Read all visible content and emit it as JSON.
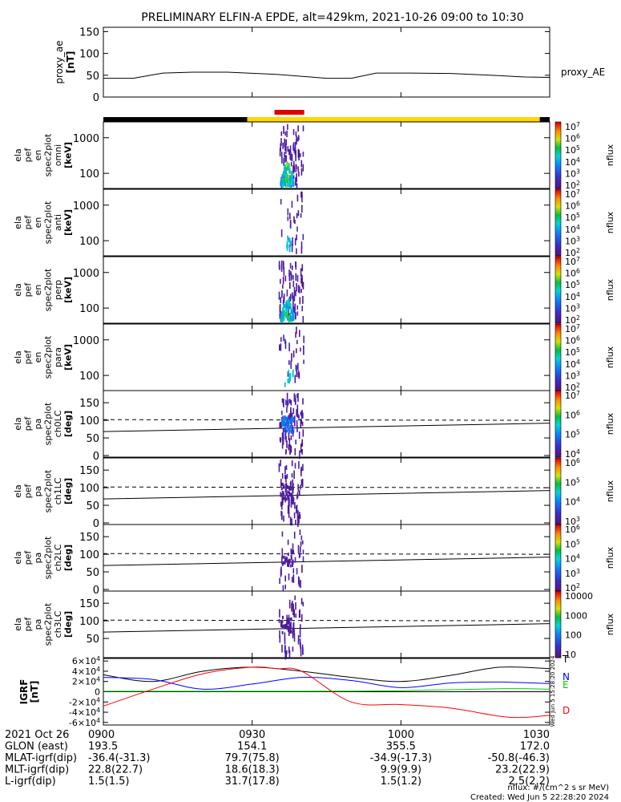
{
  "title": "PRELIMINARY ELFIN-A EPDE, alt=429km, 2021-10-26 09:00 to 10:30",
  "chart_data": {
    "type": "spectrogram-stack",
    "time_range": [
      "09:00",
      "10:30"
    ],
    "x_ticks": [
      "0900",
      "0930",
      "1000",
      "1030"
    ],
    "x_tick_minutes": [
      0,
      30,
      60,
      90
    ],
    "proxy_ae": {
      "ylabel": [
        "proxy_ae",
        "[nT]"
      ],
      "series_label": "proxy_AE",
      "yticks": [
        "0",
        "50",
        "100",
        "150"
      ],
      "ylim": [
        0,
        160
      ],
      "t": [
        0,
        6,
        12,
        18,
        25,
        35,
        45,
        50,
        55,
        62,
        70,
        78,
        85,
        90
      ],
      "v": [
        43,
        43,
        55,
        57,
        57,
        52,
        43,
        43,
        55,
        55,
        54,
        50,
        46,
        45
      ]
    },
    "status_bar": {
      "segments": [
        {
          "from": 0,
          "to": 29,
          "color": "#000000"
        },
        {
          "from": 29,
          "to": 88,
          "color": "#ffd700"
        },
        {
          "from": 88,
          "to": 90,
          "color": "#000000"
        }
      ],
      "marker": {
        "from": 34.5,
        "to": 40.5,
        "color": "#e00000"
      }
    },
    "panels": [
      {
        "ylabel": [
          "ela",
          "pef",
          "en",
          "spec2plot",
          "omni",
          "[keV]"
        ],
        "yticks": [
          "100",
          "1000"
        ],
        "kind": "energy",
        "intensity": 1.0,
        "low": true,
        "cbar": {
          "ticks": [
            "10^7",
            "10^6",
            "10^5",
            "10^4",
            "10^3",
            "10^2"
          ],
          "label": "nflux"
        }
      },
      {
        "ylabel": [
          "ela",
          "pef",
          "en",
          "spec2plot",
          "anti",
          "[keV]"
        ],
        "yticks": [
          "100",
          "1000"
        ],
        "kind": "energy",
        "intensity": 0.25,
        "low": false,
        "cbar": {
          "ticks": [
            "10^7",
            "10^6",
            "10^5",
            "10^4",
            "10^3",
            "10^2"
          ],
          "label": "nflux"
        }
      },
      {
        "ylabel": [
          "ela",
          "pef",
          "en",
          "spec2plot",
          "perp",
          "[keV]"
        ],
        "yticks": [
          "100",
          "1000"
        ],
        "kind": "energy",
        "intensity": 1.0,
        "low": true,
        "cbar": {
          "ticks": [
            "10^7",
            "10^6",
            "10^5",
            "10^4",
            "10^3",
            "10^2"
          ],
          "label": "nflux"
        }
      },
      {
        "ylabel": [
          "ela",
          "pef",
          "en",
          "spec2plot",
          "para",
          "[keV]"
        ],
        "yticks": [
          "100",
          "1000"
        ],
        "kind": "energy",
        "intensity": 0.3,
        "low": false,
        "cbar": {
          "ticks": [
            "10^7",
            "10^6",
            "10^5",
            "10^4",
            "10^3",
            "10^2"
          ],
          "label": "nflux"
        }
      },
      {
        "ylabel": [
          "ela",
          "pef",
          "pa",
          "spec2plot",
          "ch0LC",
          "[deg]"
        ],
        "yticks": [
          "0",
          "50",
          "100",
          "150"
        ],
        "kind": "pa",
        "intensity": 1.0,
        "cbar": {
          "ticks": [
            "10^7",
            "10^6",
            "10^5",
            "10^4"
          ],
          "label": "nflux"
        }
      },
      {
        "ylabel": [
          "ela",
          "pef",
          "pa",
          "spec2plot",
          "ch1LC",
          "[deg]"
        ],
        "yticks": [
          "0",
          "50",
          "100",
          "150"
        ],
        "kind": "pa",
        "intensity": 0.8,
        "cbar": {
          "ticks": [
            "10^6",
            "10^5",
            "10^4",
            "10^3"
          ],
          "label": "nflux"
        }
      },
      {
        "ylabel": [
          "ela",
          "pef",
          "pa",
          "spec2plot",
          "ch2LC",
          "[deg]"
        ],
        "yticks": [
          "0",
          "50",
          "100",
          "150"
        ],
        "kind": "pa",
        "intensity": 0.4,
        "cbar": {
          "ticks": [
            "10^6",
            "10^5",
            "10^4",
            "10^3",
            "10^2"
          ],
          "label": "nflux"
        }
      },
      {
        "ylabel": [
          "ela",
          "pef",
          "pa",
          "spec2plot",
          "ch3LC",
          "[deg]"
        ],
        "yticks": [
          "50",
          "100",
          "150"
        ],
        "kind": "pa",
        "intensity": 0.6,
        "cbar": {
          "ticks": [
            "10000",
            "1000",
            "100",
            "10"
          ],
          "label": "nflux"
        }
      }
    ],
    "igrf": {
      "ylabel": [
        "IGRF",
        "[nT]"
      ],
      "yticks": [
        "6×10^4",
        "4×10^4",
        "2×10^4",
        "0",
        "-2×10^4",
        "-4×10^4",
        "-6×10^4"
      ],
      "ylim": [
        -65000,
        65000
      ],
      "series": [
        {
          "name": "T",
          "color": "#000000",
          "t": [
            0,
            10,
            20,
            30,
            40,
            50,
            60,
            70,
            80,
            90
          ],
          "v": [
            33000,
            20000,
            40000,
            48000,
            40000,
            28000,
            20000,
            32000,
            48000,
            45000
          ]
        },
        {
          "name": "N",
          "color": "#0000ff",
          "t": [
            0,
            10,
            20,
            30,
            40,
            50,
            60,
            70,
            80,
            90
          ],
          "v": [
            28000,
            24000,
            5000,
            15000,
            28000,
            22000,
            8000,
            17000,
            19000,
            16000
          ]
        },
        {
          "name": "E",
          "color": "#00cc00",
          "t": [
            0,
            20,
            40,
            60,
            80,
            90
          ],
          "v": [
            1000,
            1000,
            1000,
            2000,
            6000,
            5000
          ]
        },
        {
          "name": "D",
          "color": "#ff0000",
          "t": [
            0,
            10,
            20,
            30,
            35,
            40,
            50,
            60,
            70,
            80,
            85,
            90
          ],
          "v": [
            -28000,
            5000,
            35000,
            48000,
            45000,
            40000,
            -20000,
            -25000,
            -32000,
            -48000,
            -50000,
            -46000
          ]
        }
      ]
    }
  },
  "footer_rows": [
    {
      "label": "2021 Oct 26",
      "vals": [
        "0900",
        "0930",
        "1000",
        "1030"
      ]
    },
    {
      "label": "GLON (east)",
      "vals": [
        "193.5",
        "154.1",
        "355.5",
        "172.0"
      ]
    },
    {
      "label": "MLAT-igrf(dip)",
      "vals": [
        "-36.4(-31.3)",
        "79.7(75.8)",
        "-34.9(-17.3)",
        "-50.8(-46.3)"
      ]
    },
    {
      "label": "MLT-igrf(dip)",
      "vals": [
        "22.8(22.7)",
        "18.6(18.3)",
        "9.9(9.9)",
        "23.2(22.9)"
      ]
    },
    {
      "label": "L-igrf(dip)",
      "vals": [
        "1.5(1.5)",
        "31.7(17.8)",
        "1.5(1.2)",
        "2.5(2.2)"
      ]
    }
  ],
  "units_note": "nflux: #/(cm^2 s sr MeV)",
  "created": "Created: Wed Jun  5 22:28:20 2024",
  "side_stamp": "Wed Jun  5 15:28:20 2024"
}
